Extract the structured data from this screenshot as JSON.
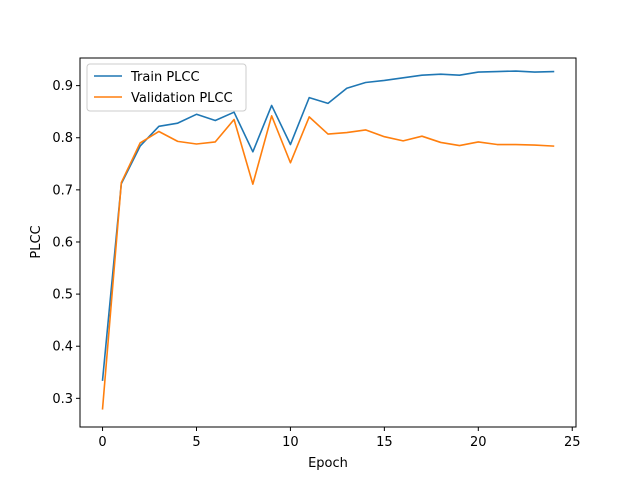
{
  "chart_data": {
    "type": "line",
    "title": "",
    "xlabel": "Epoch",
    "ylabel": "PLCC",
    "xlim": [
      -1.2,
      25.2
    ],
    "ylim": [
      0.245,
      0.953
    ],
    "xticks": [
      0,
      5,
      10,
      15,
      20,
      25
    ],
    "yticks": [
      0.3,
      0.4,
      0.5,
      0.6,
      0.7,
      0.8,
      0.9
    ],
    "grid": false,
    "legend_position": "top-left",
    "x": [
      0,
      1,
      2,
      3,
      4,
      5,
      6,
      7,
      8,
      9,
      10,
      11,
      12,
      13,
      14,
      15,
      16,
      17,
      18,
      19,
      20,
      21,
      22,
      23,
      24
    ],
    "series": [
      {
        "name": "Train PLCC",
        "color": "#1f77b4",
        "values": [
          0.335,
          0.712,
          0.784,
          0.822,
          0.828,
          0.845,
          0.833,
          0.849,
          0.773,
          0.862,
          0.787,
          0.877,
          0.866,
          0.895,
          0.906,
          0.91,
          0.915,
          0.92,
          0.922,
          0.92,
          0.926,
          0.927,
          0.928,
          0.926,
          0.927
        ]
      },
      {
        "name": "Validation PLCC",
        "color": "#ff7f0e",
        "values": [
          0.28,
          0.714,
          0.79,
          0.812,
          0.793,
          0.788,
          0.792,
          0.835,
          0.711,
          0.842,
          0.752,
          0.84,
          0.807,
          0.81,
          0.815,
          0.802,
          0.794,
          0.803,
          0.791,
          0.785,
          0.792,
          0.787,
          0.787,
          0.786,
          0.784
        ]
      }
    ]
  }
}
